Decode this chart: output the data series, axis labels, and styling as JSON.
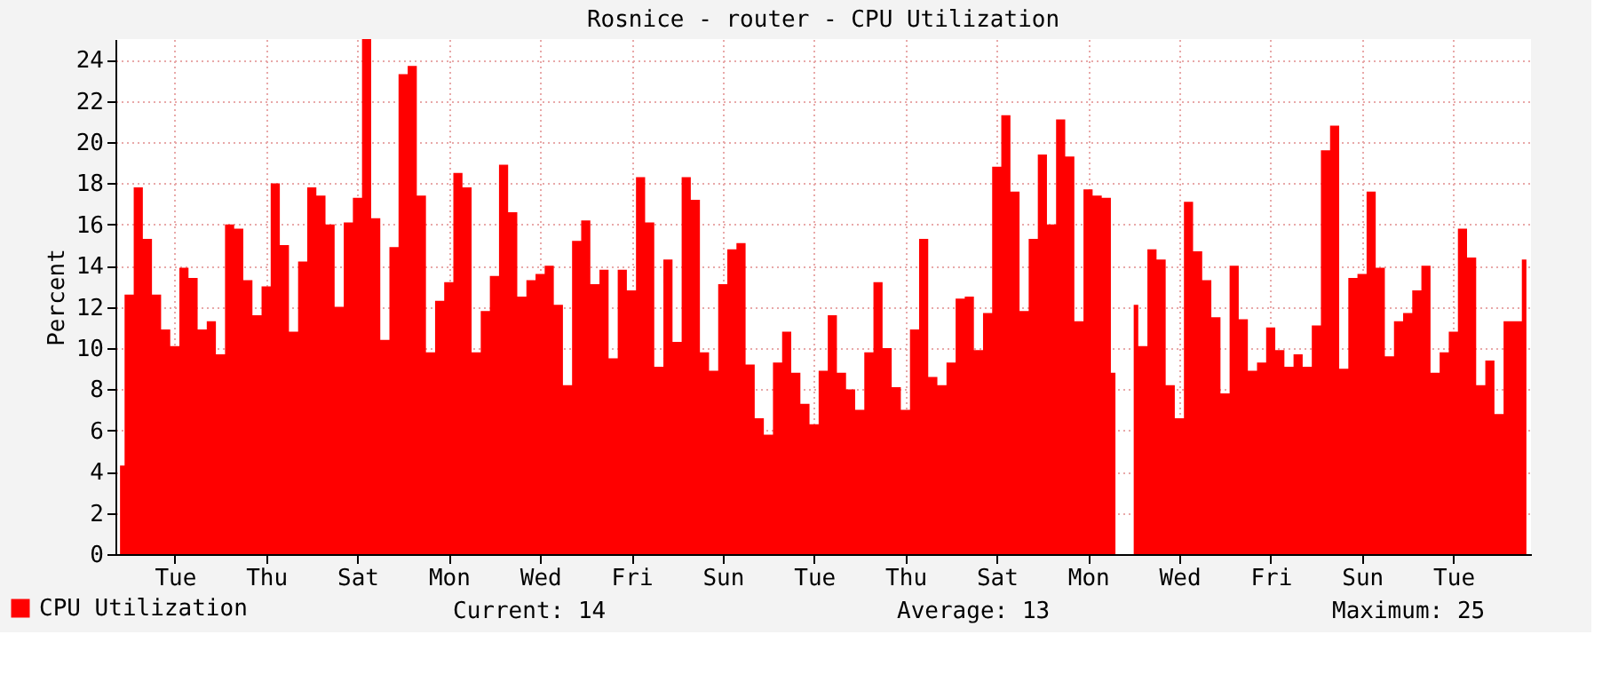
{
  "chart_data": {
    "type": "area",
    "title": "Rosnice - router - CPU Utilization",
    "ylabel": "Percent",
    "categories": [
      null,
      null,
      null,
      null,
      null,
      null,
      "Tue",
      null,
      null,
      null,
      null,
      null,
      null,
      null,
      null,
      null,
      "Thu",
      null,
      null,
      null,
      null,
      null,
      null,
      null,
      null,
      null,
      "Sat",
      null,
      null,
      null,
      null,
      null,
      null,
      null,
      null,
      null,
      "Mon",
      null,
      null,
      null,
      null,
      null,
      null,
      null,
      null,
      null,
      "Wed",
      null,
      null,
      null,
      null,
      null,
      null,
      null,
      null,
      null,
      "Fri",
      null,
      null,
      null,
      null,
      null,
      null,
      null,
      null,
      null,
      "Sun",
      null,
      null,
      null,
      null,
      null,
      null,
      null,
      null,
      null,
      "Tue",
      null,
      null,
      null,
      null,
      null,
      null,
      null,
      null,
      null,
      "Thu",
      null,
      null,
      null,
      null,
      null,
      null,
      null,
      null,
      null,
      "Sat",
      null,
      null,
      null,
      null,
      null,
      null,
      null,
      null,
      null,
      "Mon",
      null,
      null,
      null,
      null,
      null,
      null,
      null,
      null,
      null,
      "Wed",
      null,
      null,
      null,
      null,
      null,
      null,
      null,
      null,
      null,
      "Fri",
      null,
      null,
      null,
      null,
      null,
      null,
      null,
      null,
      null,
      "Sun",
      null,
      null,
      null,
      null,
      null,
      null,
      null,
      null,
      null,
      "Tue",
      null,
      null,
      null,
      null,
      null,
      null,
      null,
      null
    ],
    "series": [
      {
        "name": "CPU Utilization",
        "color": "#ff0000",
        "values": [
          4.3,
          12.6,
          17.8,
          15.3,
          12.6,
          10.9,
          10.1,
          13.9,
          13.4,
          10.9,
          11.3,
          9.7,
          16.0,
          15.8,
          13.3,
          11.6,
          13.0,
          18.0,
          15.0,
          10.8,
          14.2,
          17.8,
          17.4,
          16.0,
          12.0,
          16.1,
          17.3,
          25.0,
          16.3,
          10.4,
          14.9,
          23.3,
          23.7,
          17.4,
          9.8,
          12.3,
          13.2,
          18.5,
          17.8,
          9.8,
          11.8,
          13.5,
          18.9,
          16.6,
          12.5,
          13.3,
          13.6,
          14.0,
          12.1,
          8.2,
          15.2,
          16.2,
          13.1,
          13.8,
          9.5,
          13.8,
          12.8,
          18.3,
          16.1,
          9.1,
          14.3,
          10.3,
          18.3,
          17.2,
          9.8,
          8.9,
          13.1,
          14.8,
          15.1,
          9.2,
          6.6,
          5.8,
          9.3,
          10.8,
          8.8,
          7.3,
          6.3,
          8.9,
          11.6,
          8.8,
          8.0,
          7.0,
          9.8,
          13.2,
          10.0,
          8.1,
          7.0,
          10.9,
          15.3,
          8.6,
          8.2,
          9.3,
          12.4,
          12.5,
          9.9,
          11.7,
          18.8,
          21.3,
          17.6,
          11.8,
          15.3,
          19.4,
          16.0,
          21.1,
          19.3,
          11.3,
          17.7,
          17.4,
          17.3,
          8.8,
          null,
          12.1,
          10.1,
          14.8,
          14.3,
          8.2,
          6.6,
          17.1,
          14.7,
          13.3,
          11.5,
          7.8,
          14.0,
          11.4,
          8.9,
          9.3,
          11.0,
          9.9,
          9.1,
          9.7,
          9.1,
          11.1,
          19.6,
          20.8,
          9.0,
          13.4,
          13.6,
          17.6,
          13.9,
          9.6,
          11.3,
          11.7,
          12.8,
          14.0,
          8.8,
          9.8,
          10.8,
          15.8,
          14.4,
          8.2,
          9.4,
          6.8,
          11.3,
          11.3,
          14.3
        ]
      }
    ],
    "ylim": [
      0,
      25
    ],
    "yticks": [
      0,
      2,
      4,
      6,
      8,
      10,
      12,
      14,
      16,
      18,
      20,
      22,
      24
    ],
    "grid": true,
    "legend": "bottom",
    "annotations": [
      "Current:      14",
      "Average:      13",
      "Maximum:      25"
    ]
  }
}
